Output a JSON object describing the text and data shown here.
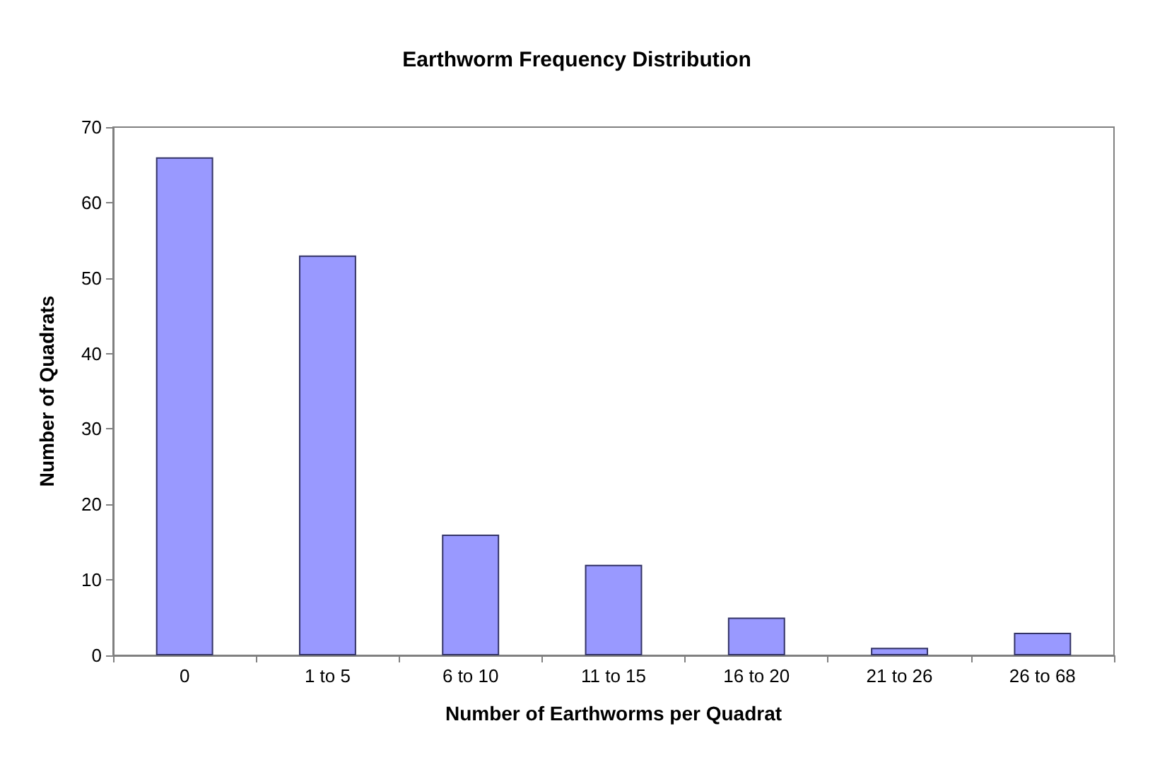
{
  "chart_data": {
    "type": "bar",
    "title": "Earthworm Frequency Distribution",
    "xlabel": "Number of Earthworms per Quadrat",
    "ylabel": "Number of Quadrats",
    "categories": [
      "0",
      "1 to 5",
      "6 to 10",
      "11 to 15",
      "16 to 20",
      "21 to 26",
      "26 to 68"
    ],
    "values": [
      66,
      53,
      16,
      12,
      5,
      1,
      3
    ],
    "color": "#9999ff",
    "ylim": [
      0,
      70
    ],
    "yticks": [
      0,
      10,
      20,
      30,
      40,
      50,
      60,
      70
    ],
    "grid": false
  }
}
